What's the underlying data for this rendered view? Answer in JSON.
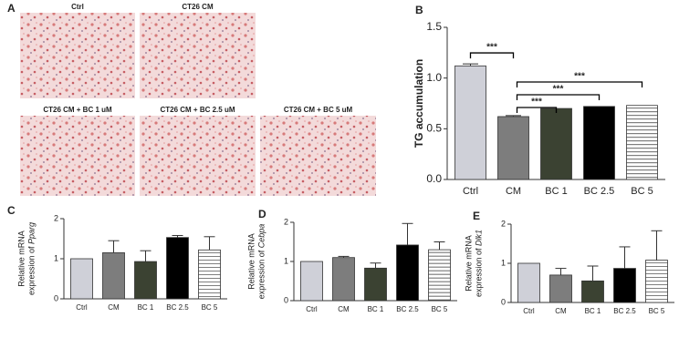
{
  "images": {
    "panel": "A",
    "captions": [
      "Ctrl",
      "CT26 CM",
      "CT26 CM + BC 1 uM",
      "CT26 CM + BC 2.5 uM",
      "CT26 CM + BC 5 uM"
    ]
  },
  "chart_data": [
    {
      "type": "bar",
      "panel": "B",
      "ylabel": [
        "TG accumulation"
      ],
      "categories": [
        "Ctrl",
        "CM",
        "BC 1",
        "BC 2.5",
        "BC 5"
      ],
      "values": [
        1.12,
        0.62,
        0.7,
        0.72,
        0.73
      ],
      "errors": [
        0.02,
        0.01,
        null,
        null,
        null
      ],
      "colors": [
        "#cfd0d8",
        "#7d7d7d",
        "#3b4232",
        "#000000",
        "#ffffff"
      ],
      "ylim": [
        0,
        1.5
      ],
      "yticks": [
        {
          "value": 0,
          "label": "0.0"
        },
        0.5,
        {
          "value": 1,
          "label": "1.0"
        },
        1.5
      ],
      "significance": [
        {
          "pair": [
            "Ctrl",
            "CM"
          ],
          "label": "***"
        },
        {
          "pair": [
            "CM",
            "BC 1"
          ],
          "label": "***"
        },
        {
          "pair": [
            "CM",
            "BC 2.5"
          ],
          "label": "***"
        },
        {
          "pair": [
            "CM",
            "BC 5"
          ],
          "label": "***"
        }
      ]
    },
    {
      "type": "bar",
      "panel": "C",
      "ylabel": [
        "Relative mRNA",
        "expression of"
      ],
      "gene": "Pparg",
      "categories": [
        "Ctrl",
        "CM",
        "BC 1",
        "BC 2.5",
        "BC 5"
      ],
      "values": [
        1.0,
        1.15,
        0.93,
        1.53,
        1.22
      ],
      "errors": [
        null,
        0.3,
        0.27,
        0.05,
        0.33
      ],
      "colors": [
        "#cfd0d8",
        "#7d7d7d",
        "#3b4232",
        "#000000",
        "#ffffff"
      ],
      "ylim": [
        0,
        2
      ],
      "yticks": [
        0,
        1,
        2
      ]
    },
    {
      "type": "bar",
      "panel": "D",
      "ylabel": [
        "Relative mRNA",
        "expression of"
      ],
      "gene": "Cebpa",
      "categories": [
        "Ctrl",
        "CM",
        "BC 1",
        "BC 2.5",
        "BC 5"
      ],
      "values": [
        1.0,
        1.1,
        0.83,
        1.42,
        1.3
      ],
      "errors": [
        null,
        0.03,
        0.13,
        0.55,
        0.2
      ],
      "colors": [
        "#cfd0d8",
        "#7d7d7d",
        "#3b4232",
        "#000000",
        "#ffffff"
      ],
      "ylim": [
        0,
        2
      ],
      "yticks": [
        0,
        1,
        2
      ]
    },
    {
      "type": "bar",
      "panel": "E",
      "ylabel": [
        "Relative mRNA",
        "expression of"
      ],
      "gene": "Dlk1",
      "categories": [
        "Ctrl",
        "CM",
        "BC 1",
        "BC 2.5",
        "BC 5"
      ],
      "values": [
        1.0,
        0.7,
        0.55,
        0.87,
        1.08
      ],
      "errors": [
        null,
        0.17,
        0.38,
        0.55,
        0.75
      ],
      "colors": [
        "#cfd0d8",
        "#7d7d7d",
        "#3b4232",
        "#000000",
        "#ffffff"
      ],
      "ylim": [
        0,
        2
      ],
      "yticks": [
        0,
        1,
        2
      ]
    }
  ]
}
